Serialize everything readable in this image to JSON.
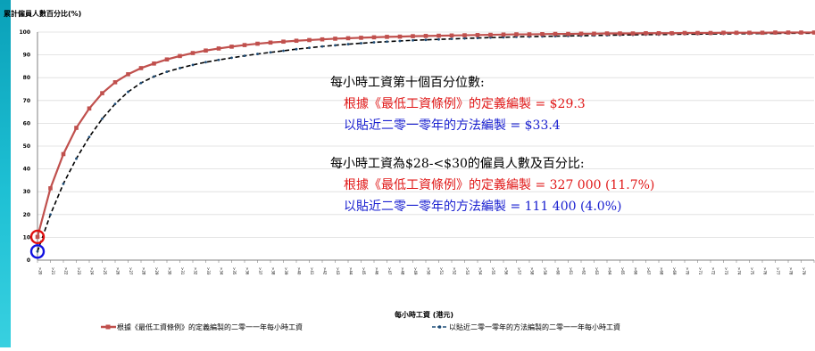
{
  "chart_data": {
    "type": "line",
    "ylabel": "累計僱員人數百分比(%)",
    "xlabel": "每小時工資 (港元)",
    "ylim": [
      0,
      100
    ],
    "yticks": [
      0,
      10,
      20,
      30,
      40,
      50,
      60,
      70,
      80,
      90,
      100
    ],
    "x": [
      20,
      21,
      22,
      23,
      24,
      25,
      26,
      27,
      28,
      29,
      30,
      31,
      32,
      33,
      34,
      35,
      36,
      37,
      38,
      39,
      40,
      41,
      42,
      43,
      44,
      45,
      46,
      47,
      48,
      49,
      50,
      51,
      52,
      53,
      54,
      55,
      56,
      57,
      58,
      59,
      60,
      61,
      62,
      63,
      64,
      65,
      66,
      67,
      68,
      69,
      70,
      71,
      72,
      73,
      74,
      75,
      76,
      77,
      78,
      79,
      80
    ],
    "series": [
      {
        "name": "根據《最低工資條例》的定義編製的二零一一年每小時工資",
        "color": "#c0504d",
        "style": "solid-square",
        "values": [
          10.2,
          31.5,
          46.5,
          58,
          66.5,
          73.2,
          78,
          81.5,
          84.2,
          86.2,
          88.0,
          89.5,
          90.8,
          91.9,
          92.8,
          93.6,
          94.3,
          94.9,
          95.4,
          95.8,
          96.2,
          96.5,
          96.8,
          97.1,
          97.3,
          97.5,
          97.7,
          97.9,
          98.0,
          98.2,
          98.3,
          98.4,
          98.5,
          98.6,
          98.7,
          98.8,
          98.9,
          99.0,
          99.0,
          99.1,
          99.2,
          99.2,
          99.3,
          99.3,
          99.4,
          99.4,
          99.4,
          99.5,
          99.5,
          99.5,
          99.6,
          99.6,
          99.6,
          99.7,
          99.7,
          99.7,
          99.7,
          99.8,
          99.8,
          99.8,
          99.8
        ]
      },
      {
        "name": "以貼近二零一零年的方法編製的二零一一年每小時工資",
        "color": "#1f4e79",
        "style": "dashed-dot",
        "values": [
          3.8,
          20,
          33.5,
          44.5,
          54,
          62,
          68.5,
          73.8,
          77.7,
          80.5,
          82.6,
          84.2,
          85.6,
          86.8,
          87.8,
          88.7,
          89.6,
          90.4,
          91.1,
          91.8,
          92.5,
          93.1,
          93.7,
          94.2,
          94.7,
          95.1,
          95.5,
          95.8,
          96.1,
          96.4,
          96.6,
          96.8,
          97.0,
          97.2,
          97.4,
          97.6,
          97.7,
          97.9,
          98.0,
          98.1,
          98.2,
          98.3,
          98.4,
          98.5,
          98.6,
          98.7,
          98.8,
          98.9,
          98.9,
          99.0,
          99.1,
          99.1,
          99.2,
          99.2,
          99.3,
          99.3,
          99.4,
          99.4,
          99.5,
          99.5,
          99.5
        ]
      }
    ],
    "highlight_circles": [
      {
        "series": 0,
        "index": 0,
        "color": "#e01010"
      },
      {
        "series": 1,
        "index": 0,
        "color": "#1010e0"
      }
    ]
  },
  "annotations": {
    "p10_heading": "每小時工資第十個百分位數:",
    "p10_line1": "根據《最低工資條例》的定義編製 = $29.3",
    "p10_line2": "以貼近二零一零年的方法編製 = $33.4",
    "count_heading": "每小時工資為$28-<$30的僱員人數及百分比:",
    "count_line1": "根據《最低工資條例》的定義編製 = 327 000 (11.7%)",
    "count_line2": "以貼近二零一零年的方法編製 = 111 400 (4.0%)"
  },
  "legend": {
    "item1": "根據《最低工資條例》的定義編製的二零一一年每小時工資",
    "item2": "以貼近二零一零年的方法編製的二零一一年每小時工資"
  },
  "colors": {
    "heading": "#000000",
    "red_text": "#e01818",
    "blue_text": "#1a20d0",
    "accent_bar": "#1ec0d4"
  }
}
